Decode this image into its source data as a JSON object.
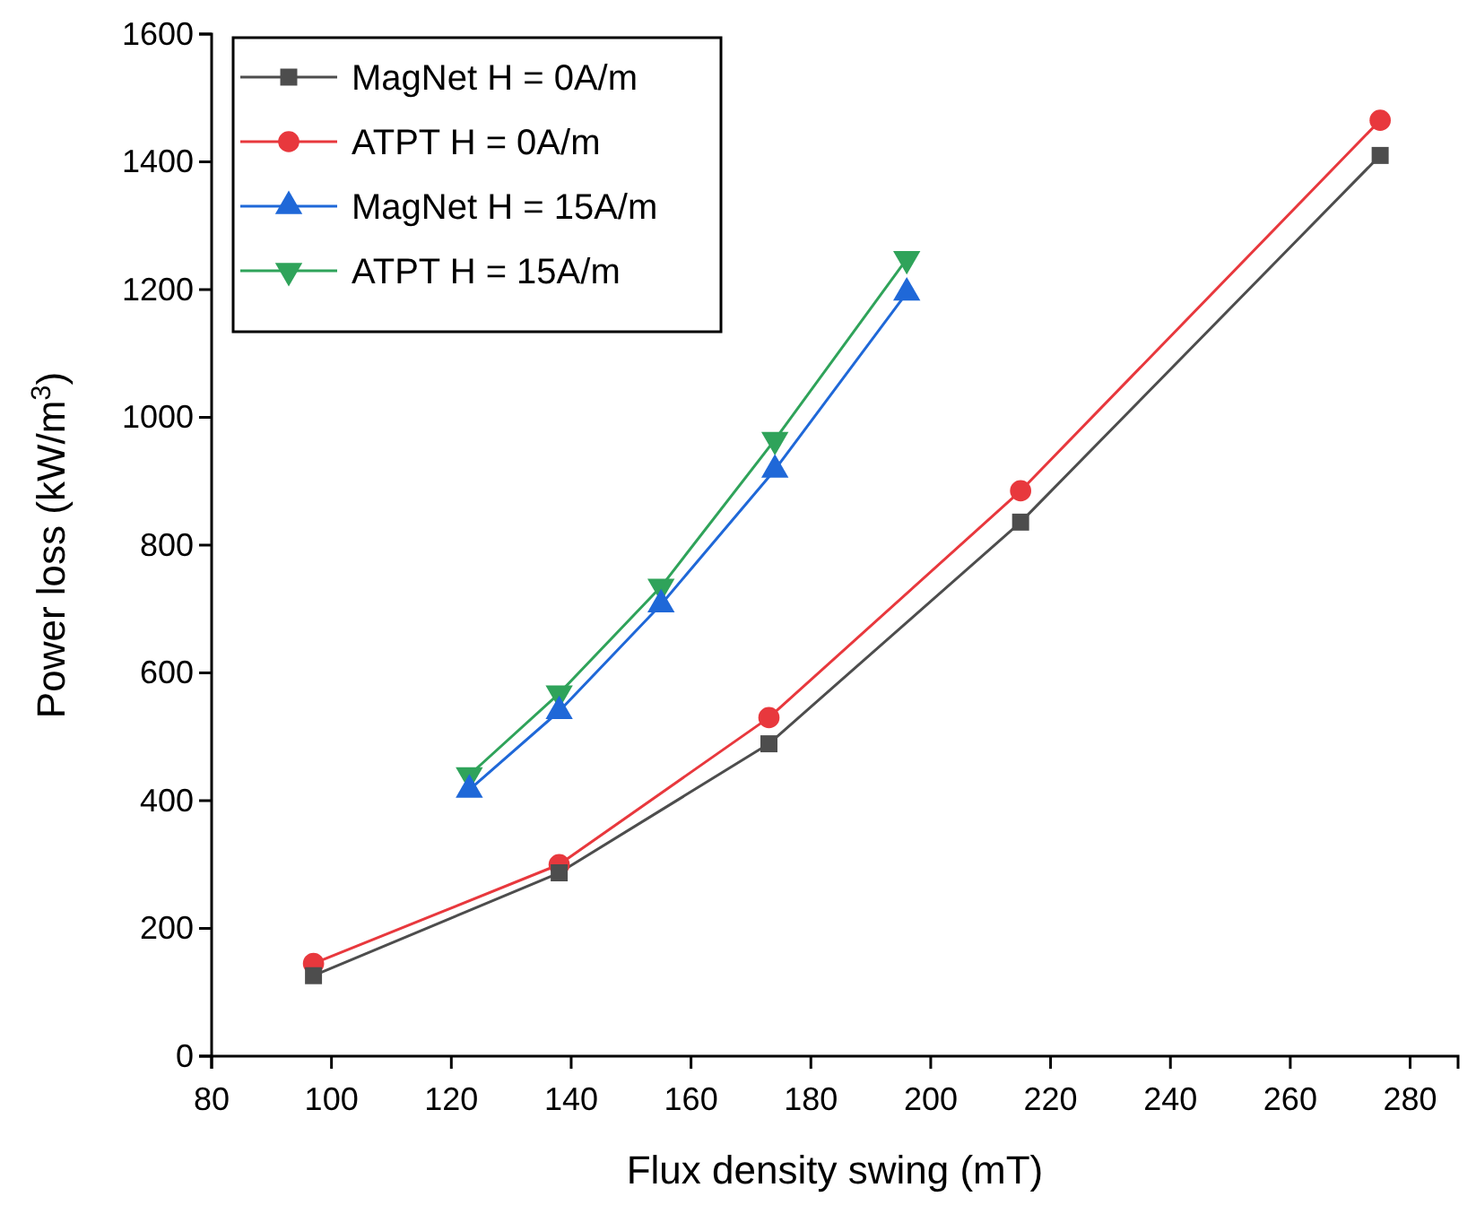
{
  "chart_data": {
    "type": "line",
    "xlabel": "Flux density swing (mT)",
    "ylabel": "Power loss (kW/m$^{3}$)",
    "xlim": [
      80,
      288
    ],
    "xticks": [
      80,
      100,
      120,
      140,
      160,
      180,
      200,
      220,
      240,
      260,
      280
    ],
    "ylim": [
      0,
      1600
    ],
    "yticks": [
      0,
      200,
      400,
      600,
      800,
      1000,
      1200,
      1400,
      1600
    ],
    "grid": false,
    "legend": "top left",
    "series": [
      {
        "name": "MagNet H = 0A/m",
        "color": "#4d4d4d",
        "marker": "square",
        "x": [
          97,
          138,
          173,
          215,
          275
        ],
        "values": [
          126,
          287,
          489,
          836,
          1410
        ]
      },
      {
        "name": "ATPT H = 0A/m",
        "color": "#e8383d",
        "marker": "circle",
        "x": [
          97,
          138,
          173,
          215,
          275
        ],
        "values": [
          145,
          300,
          530,
          885,
          1465
        ]
      },
      {
        "name": "MagNet H = 15A/m",
        "color": "#1f68d8",
        "marker": "triangle",
        "x": [
          123,
          138,
          155,
          174,
          196
        ],
        "values": [
          417,
          540,
          707,
          918,
          1195
        ]
      },
      {
        "name": "ATPT H = 15A/m",
        "color": "#2fa35a",
        "marker": "triangle-down",
        "x": [
          123,
          138,
          155,
          174,
          196
        ],
        "values": [
          440,
          568,
          735,
          965,
          1248
        ]
      }
    ]
  }
}
